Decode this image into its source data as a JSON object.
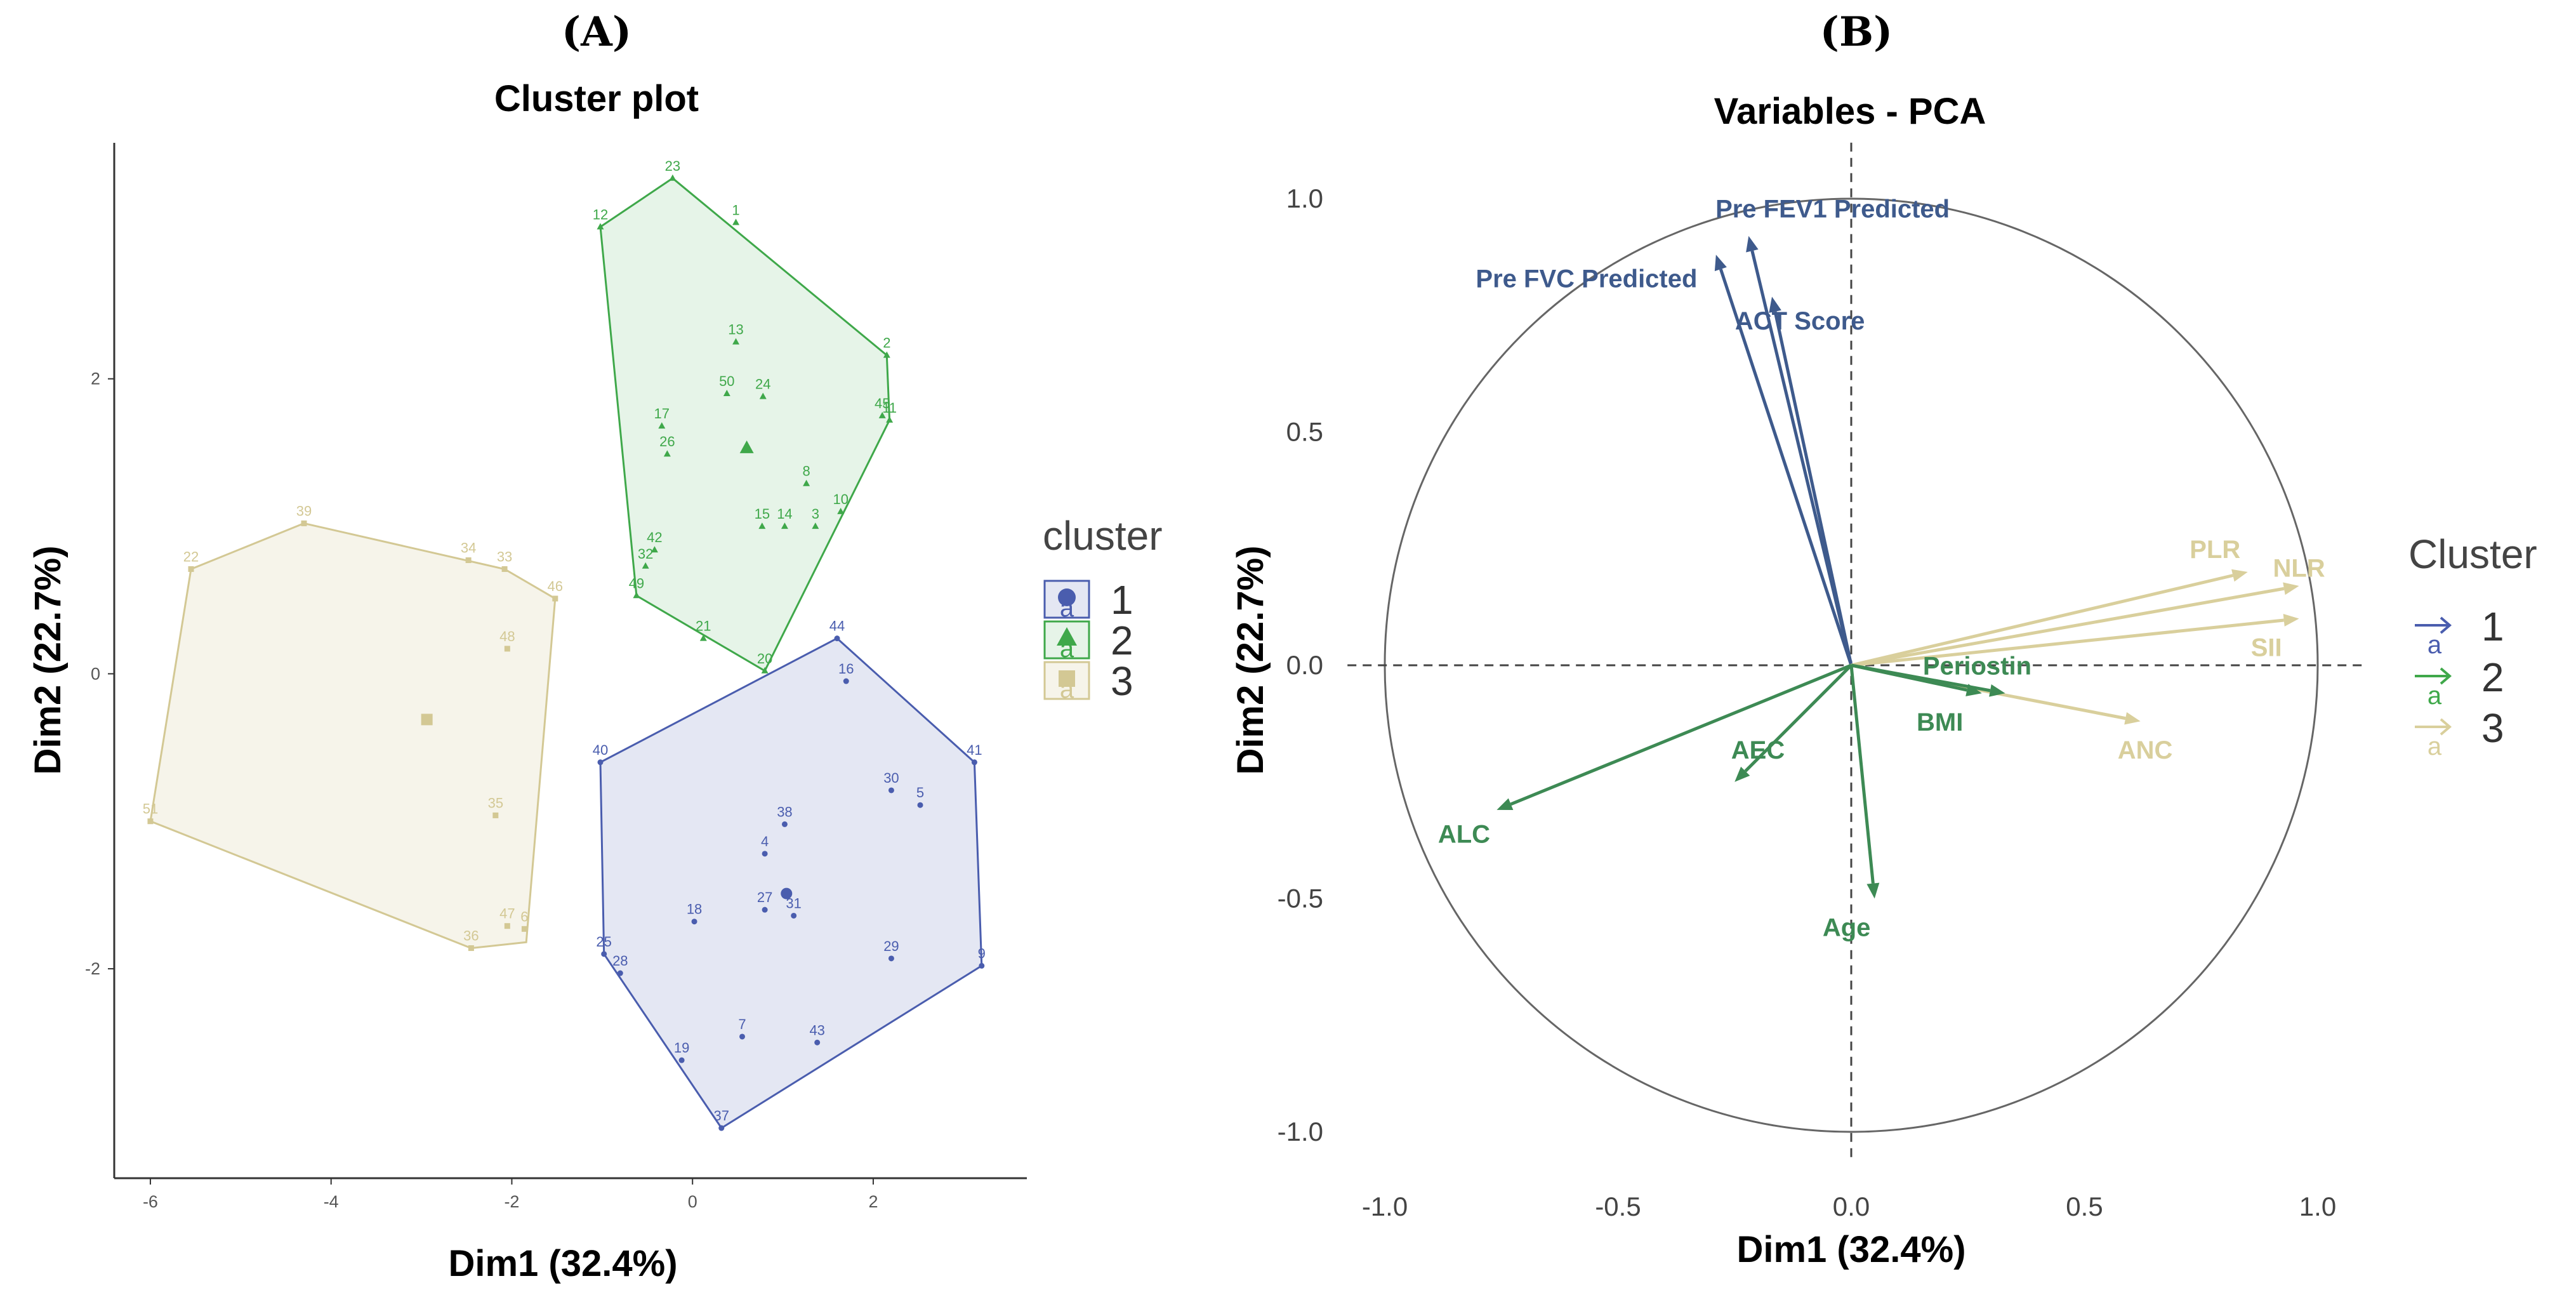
{
  "panel_labels": {
    "a": "(A)",
    "b": "(B)"
  },
  "colors": {
    "c1": "#4a5dae",
    "c2": "#3fa84a",
    "c3": "#d3c894",
    "v1": "#3e5a8c",
    "v2": "#3d8a54",
    "v3": "#d9cf9c"
  },
  "chart_data": [
    {
      "type": "scatter",
      "title": "Cluster plot",
      "xlabel": "Dim1 (32.4%)",
      "ylabel": "Dim2 (22.7%)",
      "xlim": [
        -6.4,
        3.7
      ],
      "ylim": [
        -3.42,
        3.6
      ],
      "xticks": [
        -6,
        -4,
        -2,
        0,
        2
      ],
      "yticks": [
        -2,
        0,
        2
      ],
      "legend": {
        "title": "cluster",
        "entries": [
          "1",
          "2",
          "3"
        ],
        "key_text": "a",
        "placement": "right"
      },
      "clusters": [
        {
          "name": "1",
          "hull": [
            [
              3.2,
              -1.98
            ],
            [
              3.12,
              -0.6
            ],
            [
              1.6,
              0.24
            ],
            [
              -1.02,
              -0.6
            ],
            [
              -0.98,
              -1.9
            ],
            [
              0.32,
              -3.08
            ]
          ],
          "centroid": [
            1.04,
            -1.49
          ],
          "points": [
            {
              "label": "44",
              "x": 1.6,
              "y": 0.24
            },
            {
              "label": "16",
              "x": 1.7,
              "y": -0.05
            },
            {
              "label": "40",
              "x": -1.02,
              "y": -0.6
            },
            {
              "label": "41",
              "x": 3.12,
              "y": -0.6
            },
            {
              "label": "30",
              "x": 2.2,
              "y": -0.79
            },
            {
              "label": "5",
              "x": 2.52,
              "y": -0.89
            },
            {
              "label": "38",
              "x": 1.02,
              "y": -1.02
            },
            {
              "label": "4",
              "x": 0.8,
              "y": -1.22
            },
            {
              "label": "18",
              "x": 0.02,
              "y": -1.68
            },
            {
              "label": "27",
              "x": 0.8,
              "y": -1.6
            },
            {
              "label": "31",
              "x": 1.12,
              "y": -1.64
            },
            {
              "label": "25",
              "x": -0.98,
              "y": -1.9
            },
            {
              "label": "28",
              "x": -0.8,
              "y": -2.03
            },
            {
              "label": "29",
              "x": 2.2,
              "y": -1.93
            },
            {
              "label": "9",
              "x": 3.2,
              "y": -1.98
            },
            {
              "label": "7",
              "x": 0.55,
              "y": -2.46
            },
            {
              "label": "43",
              "x": 1.38,
              "y": -2.5
            },
            {
              "label": "19",
              "x": -0.12,
              "y": -2.62
            },
            {
              "label": "37",
              "x": 0.32,
              "y": -3.08
            }
          ]
        },
        {
          "name": "2",
          "hull": [
            [
              -0.22,
              3.36
            ],
            [
              -1.02,
              3.03
            ],
            [
              -0.62,
              0.53
            ],
            [
              0.8,
              0.02
            ],
            [
              2.18,
              1.72
            ],
            [
              2.15,
              2.16
            ]
          ],
          "centroid": [
            0.6,
            1.53
          ],
          "points": [
            {
              "label": "23",
              "x": -0.22,
              "y": 3.36
            },
            {
              "label": "1",
              "x": 0.48,
              "y": 3.06
            },
            {
              "label": "12",
              "x": -1.02,
              "y": 3.03
            },
            {
              "label": "13",
              "x": 0.48,
              "y": 2.25
            },
            {
              "label": "2",
              "x": 2.15,
              "y": 2.16
            },
            {
              "label": "50",
              "x": 0.38,
              "y": 1.9
            },
            {
              "label": "24",
              "x": 0.78,
              "y": 1.88
            },
            {
              "label": "45",
              "x": 2.1,
              "y": 1.75
            },
            {
              "label": "11",
              "x": 2.18,
              "y": 1.72
            },
            {
              "label": "17",
              "x": -0.34,
              "y": 1.68
            },
            {
              "label": "26",
              "x": -0.28,
              "y": 1.49
            },
            {
              "label": "8",
              "x": 1.26,
              "y": 1.29
            },
            {
              "label": "10",
              "x": 1.64,
              "y": 1.1
            },
            {
              "label": "15",
              "x": 0.77,
              "y": 1.0
            },
            {
              "label": "14",
              "x": 1.02,
              "y": 1.0
            },
            {
              "label": "3",
              "x": 1.36,
              "y": 1.0
            },
            {
              "label": "42",
              "x": -0.42,
              "y": 0.84
            },
            {
              "label": "32",
              "x": -0.52,
              "y": 0.73
            },
            {
              "label": "49",
              "x": -0.62,
              "y": 0.53
            },
            {
              "label": "21",
              "x": 0.12,
              "y": 0.24
            },
            {
              "label": "20",
              "x": 0.8,
              "y": 0.02
            }
          ]
        },
        {
          "name": "3",
          "hull": [
            [
              -4.3,
              1.02
            ],
            [
              -5.55,
              0.71
            ],
            [
              -6.0,
              -1.0
            ],
            [
              -2.45,
              -1.86
            ],
            [
              -1.84,
              -1.82
            ],
            [
              -1.52,
              0.51
            ],
            [
              -2.08,
              0.71
            ]
          ],
          "centroid": [
            -2.94,
            -0.31
          ],
          "points": [
            {
              "label": "39",
              "x": -4.3,
              "y": 1.02
            },
            {
              "label": "22",
              "x": -5.55,
              "y": 0.71
            },
            {
              "label": "34",
              "x": -2.48,
              "y": 0.77
            },
            {
              "label": "33",
              "x": -2.08,
              "y": 0.71
            },
            {
              "label": "46",
              "x": -1.52,
              "y": 0.51
            },
            {
              "label": "48",
              "x": -2.05,
              "y": 0.17
            },
            {
              "label": "35",
              "x": -2.18,
              "y": -0.96
            },
            {
              "label": "51",
              "x": -6.0,
              "y": -1.0
            },
            {
              "label": "47",
              "x": -2.05,
              "y": -1.71
            },
            {
              "label": "6",
              "x": -1.86,
              "y": -1.73
            },
            {
              "label": "36",
              "x": -2.45,
              "y": -1.86
            }
          ]
        }
      ]
    },
    {
      "type": "vector",
      "title": "Variables - PCA",
      "xlabel": "Dim1 (32.4%)",
      "ylabel": "Dim2 (22.7%)",
      "xlim": [
        -1.08,
        1.1
      ],
      "ylim": [
        -1.06,
        1.12
      ],
      "xticks": [
        "-1.0",
        "-0.5",
        "0.0",
        "0.5",
        "1.0"
      ],
      "yticks": [
        "1.0",
        "0.5",
        "0.0",
        "-0.5",
        "-1.0"
      ],
      "legend": {
        "title": "Cluster",
        "entries": [
          "1",
          "2",
          "3"
        ],
        "key_text": "a",
        "placement": "right"
      },
      "variables": [
        {
          "name": "Pre FEV1 Predicted",
          "cluster": "1",
          "x": -0.22,
          "y": 0.92
        },
        {
          "name": "Pre FVC Predicted",
          "cluster": "1",
          "x": -0.29,
          "y": 0.88
        },
        {
          "name": "ACT Score",
          "cluster": "1",
          "x": -0.17,
          "y": 0.79
        },
        {
          "name": "PLR",
          "cluster": "3",
          "x": 0.85,
          "y": 0.2
        },
        {
          "name": "NLR",
          "cluster": "3",
          "x": 0.96,
          "y": 0.17
        },
        {
          "name": "SII",
          "cluster": "3",
          "x": 0.96,
          "y": 0.1
        },
        {
          "name": "ANC",
          "cluster": "3",
          "x": 0.62,
          "y": -0.12
        },
        {
          "name": "Periostin",
          "cluster": "2",
          "x": 0.33,
          "y": -0.06
        },
        {
          "name": "BMI",
          "cluster": "2",
          "x": 0.28,
          "y": -0.06
        },
        {
          "name": "AEC",
          "cluster": "2",
          "x": -0.25,
          "y": -0.25
        },
        {
          "name": "ALC",
          "cluster": "2",
          "x": -0.76,
          "y": -0.31
        },
        {
          "name": "Age",
          "cluster": "2",
          "x": 0.05,
          "y": -0.5
        }
      ]
    }
  ]
}
